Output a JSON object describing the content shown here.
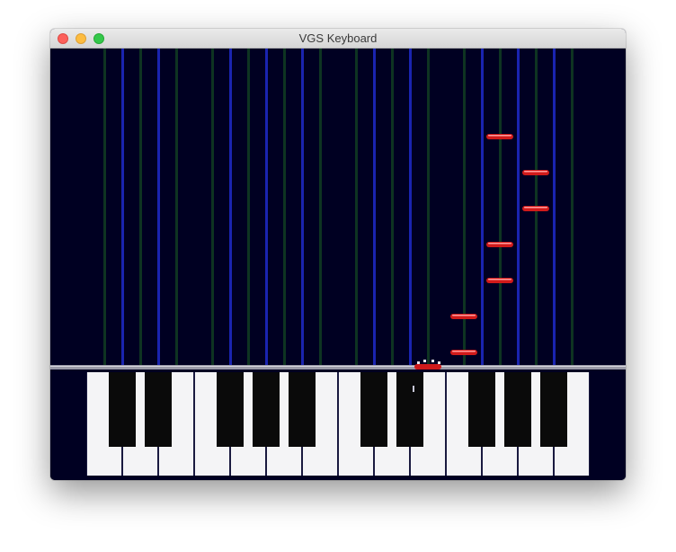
{
  "window": {
    "title": "VGS Keyboard"
  },
  "colors": {
    "background": "#000022",
    "lane_blue": "#1a24b0",
    "lane_green": "#0e3422",
    "note_red": "#d01a1a",
    "white_key": "#f4f4f6",
    "black_key": "#0a0a0a",
    "judge_line": "#9a9aa8"
  },
  "game": {
    "keyboard": {
      "white_key_count": 14,
      "black_key_count": 10
    },
    "falling_notes": [
      {
        "pitch": "G4"
      },
      {
        "pitch": "A4"
      },
      {
        "pitch": "A4"
      },
      {
        "pitch": "G4"
      },
      {
        "pitch": "G4"
      },
      {
        "pitch": "F4"
      },
      {
        "pitch": "F4"
      }
    ],
    "hit_note": {
      "pitch": "E4"
    }
  }
}
